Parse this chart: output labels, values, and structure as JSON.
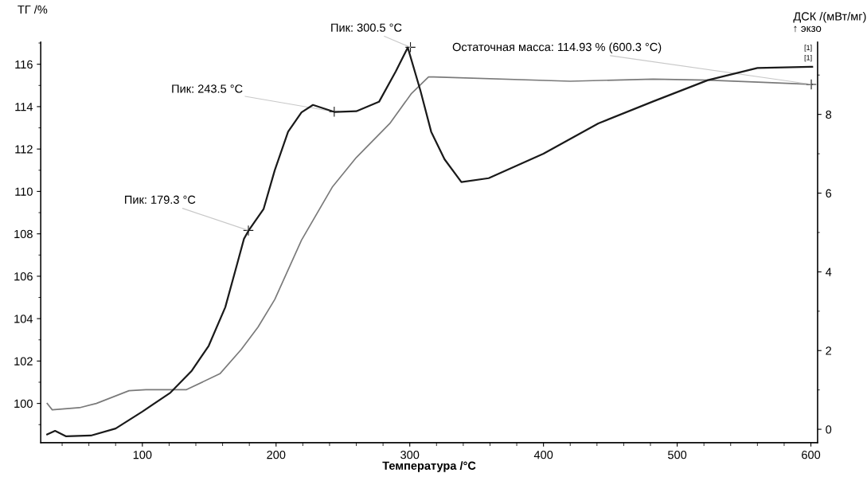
{
  "chart_data": {
    "type": "line",
    "xlabel": "Температура /°C",
    "ylabel": "ТГ /%",
    "y2label": "ДСК /(мВт/мг)",
    "xlim": [
      24,
      605
    ],
    "xticks": [
      100,
      200,
      300,
      400,
      500,
      600
    ],
    "ylim": [
      98.15,
      117.05
    ],
    "yticks": [
      100,
      102,
      104,
      106,
      108,
      110,
      112,
      114,
      116
    ],
    "y2lim": [
      -0.34,
      9.84
    ],
    "y2ticks": [
      0,
      2,
      4,
      6,
      8
    ],
    "grid": false,
    "legend": false,
    "marker": "none",
    "line_style": "solid",
    "series": [
      {
        "color": "#7a7a7a",
        "x": [
          28.8,
          32.6,
          53,
          65.6,
          90,
          102.6,
          133,
          158,
          174,
          186.5,
          199,
          219,
          242,
          260,
          285,
          301,
          314,
          318,
          420,
          482,
          523,
          564,
          601
        ],
        "values": [
          100.0,
          99.7,
          99.8,
          100.0,
          100.6,
          100.65,
          100.65,
          101.4,
          102.55,
          103.6,
          104.9,
          107.7,
          110.2,
          111.6,
          113.2,
          114.6,
          115.4,
          115.4,
          115.2,
          115.3,
          115.25,
          115.15,
          115.05
        ]
      },
      {
        "color": "#1a1a1a",
        "axis": "y2",
        "x": [
          28.8,
          34.7,
          43,
          61.5,
          80,
          100,
          121,
          137,
          149.6,
          162,
          170.4,
          176,
          179.3,
          190.7,
          199,
          209,
          219,
          227.6,
          244,
          260,
          277,
          289.5,
          298.5,
          308,
          316,
          326,
          338.6,
          359,
          400,
          441,
          482,
          523,
          560,
          601
        ],
        "values": [
          -0.13,
          -0.04,
          -0.18,
          -0.16,
          0.02,
          0.45,
          0.93,
          1.49,
          2.12,
          3.1,
          4.14,
          4.84,
          5.04,
          5.6,
          6.58,
          7.56,
          8.05,
          8.24,
          8.06,
          8.08,
          8.32,
          9.09,
          9.7,
          8.6,
          7.56,
          6.86,
          6.28,
          6.38,
          7.0,
          7.77,
          8.33,
          8.87,
          9.18,
          9.21
        ]
      }
    ],
    "annotations": [
      {
        "text": "Пик: 179.3 °C",
        "x": 179.3,
        "y": 108.16
      },
      {
        "text": "Пик: 243.5 °C",
        "x": 243.5,
        "y": 113.76
      },
      {
        "text": "Пик: 300.5 °C",
        "x": 300.5,
        "y": 116.8
      },
      {
        "text": "Остаточная масса: 114.93 % (600.3 °C)",
        "x": 600.3,
        "y": 115.05
      },
      "[1]",
      "[1]",
      "↑ экзо"
    ]
  }
}
